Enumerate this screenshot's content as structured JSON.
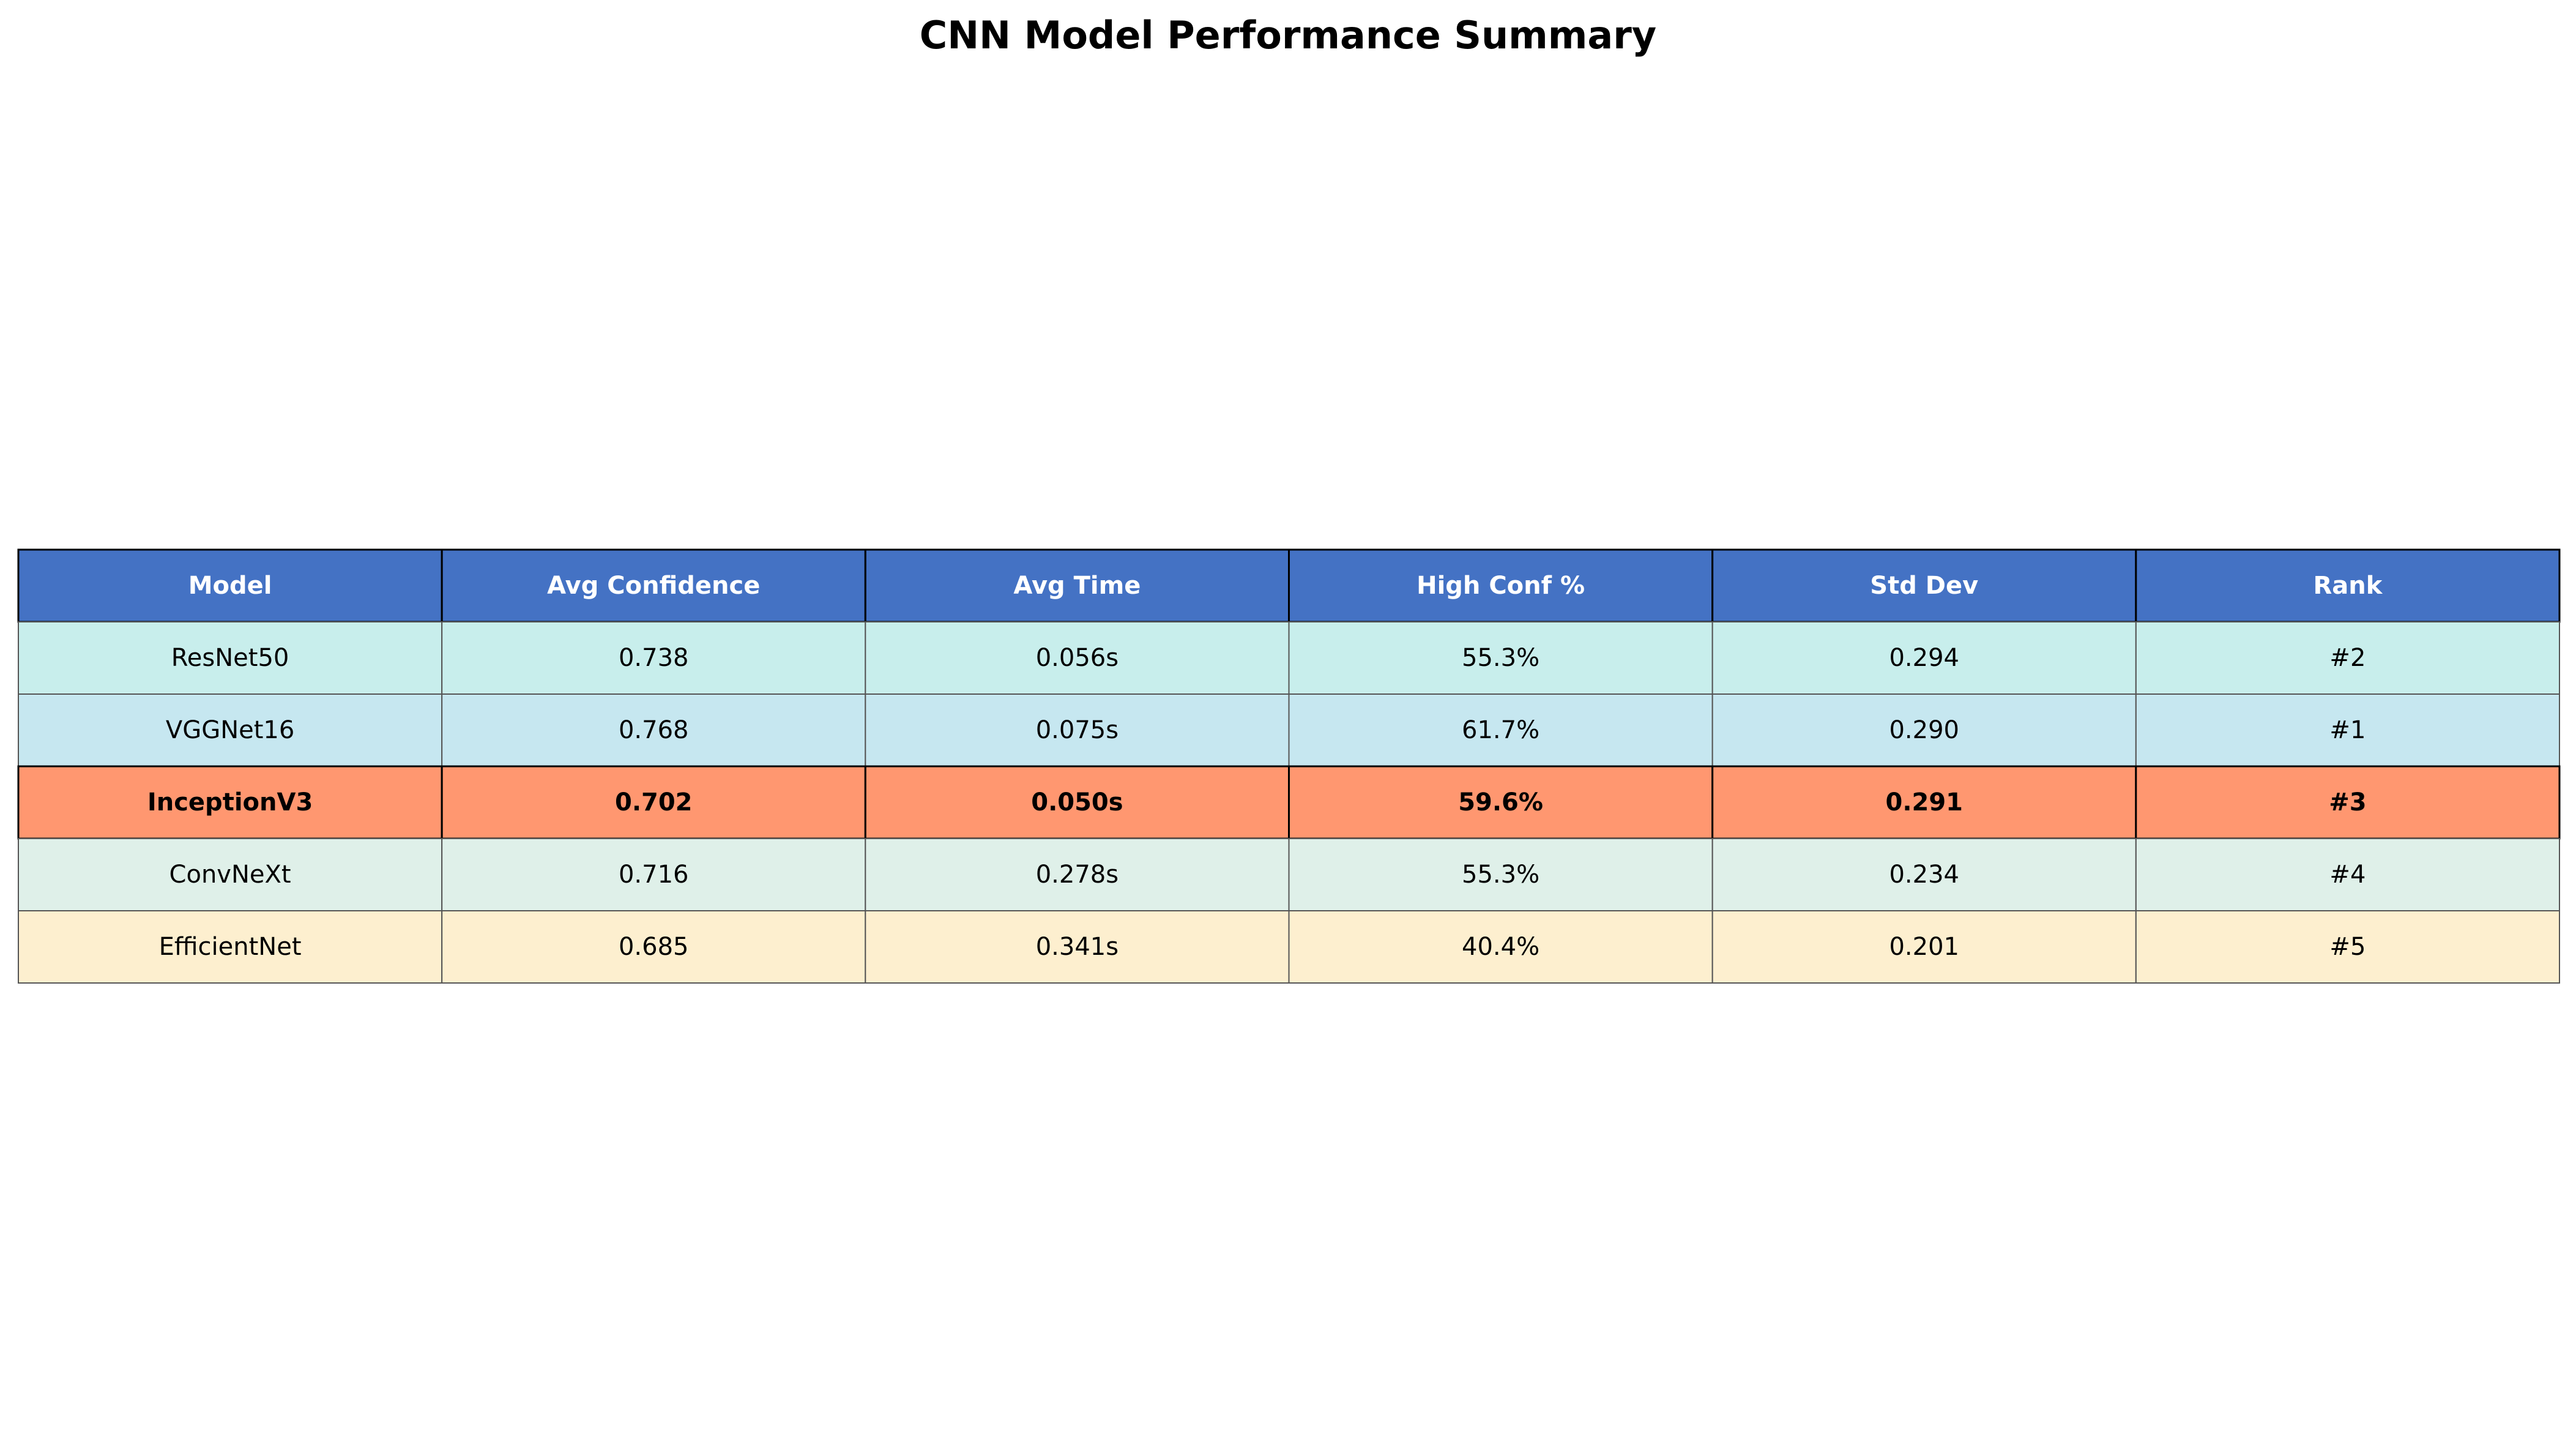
{
  "chart_data": {
    "type": "table",
    "title": "CNN Model Performance Summary",
    "columns": [
      "Model",
      "Avg Confidence",
      "Avg Time",
      "High Conf %",
      "Std Dev",
      "Rank"
    ],
    "rows": [
      {
        "cells": [
          "ResNet50",
          "0.738",
          "0.056s",
          "55.3%",
          "0.294",
          "#2"
        ],
        "fill": "#c8eeec",
        "highlight": false
      },
      {
        "cells": [
          "VGGNet16",
          "0.768",
          "0.075s",
          "61.7%",
          "0.290",
          "#1"
        ],
        "fill": "#c6e7f0",
        "highlight": false
      },
      {
        "cells": [
          "InceptionV3",
          "0.702",
          "0.050s",
          "59.6%",
          "0.291",
          "#3"
        ],
        "fill": "#ff9770",
        "highlight": true
      },
      {
        "cells": [
          "ConvNeXt",
          "0.716",
          "0.278s",
          "55.3%",
          "0.234",
          "#4"
        ],
        "fill": "#dff0e9",
        "highlight": false
      },
      {
        "cells": [
          "EfficientNet",
          "0.685",
          "0.341s",
          "40.4%",
          "0.201",
          "#5"
        ],
        "fill": "#fdefcf",
        "highlight": false
      }
    ],
    "colors": {
      "header_fill": "#4472c4",
      "header_text": "#ffffff",
      "body_text": "#000000",
      "grid_line": "#555555",
      "border_line": "#000000"
    }
  }
}
